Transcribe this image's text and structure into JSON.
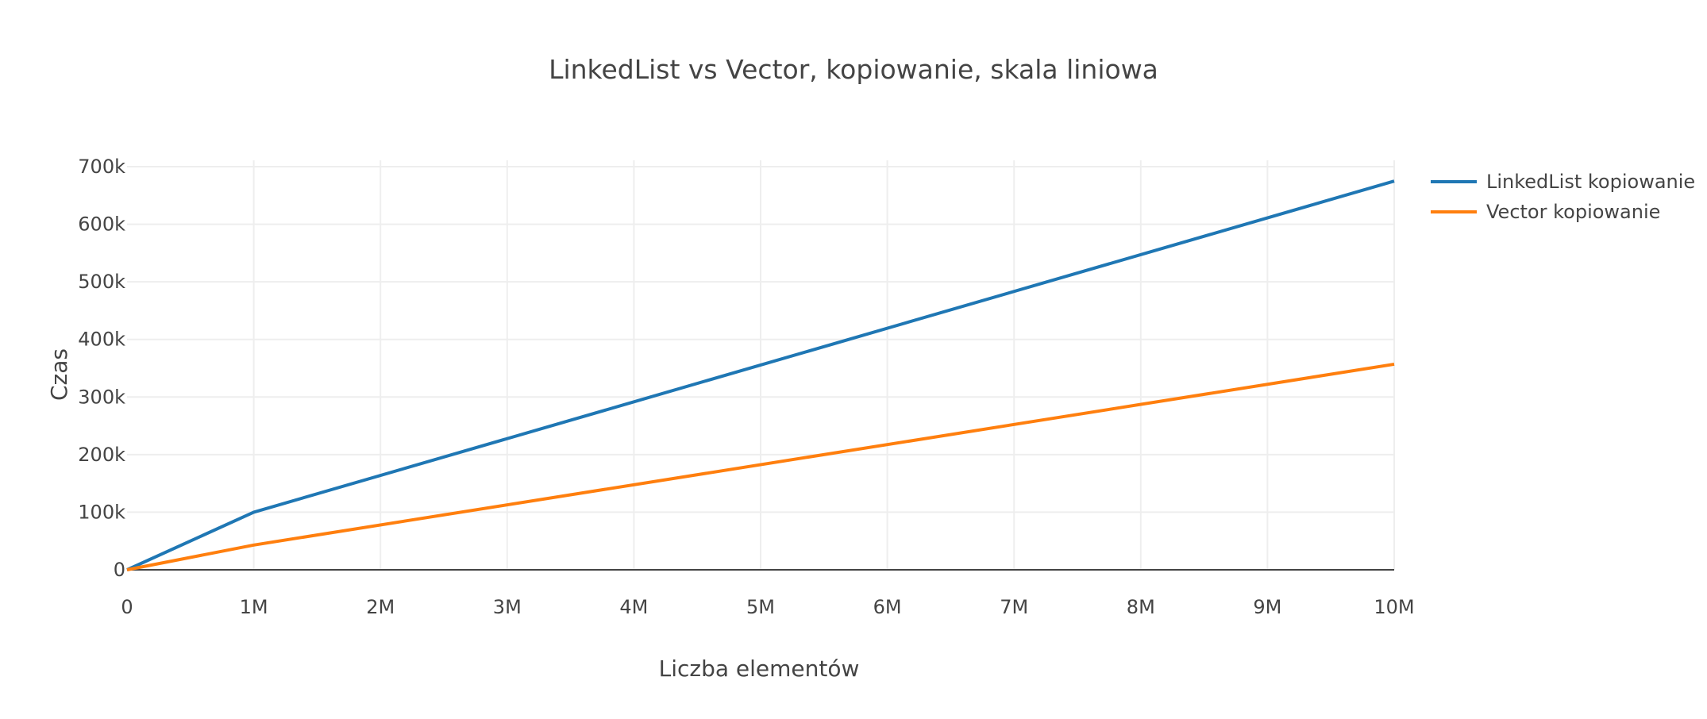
{
  "chart_data": {
    "type": "line",
    "title": "LinkedList vs Vector, kopiowanie, skala liniowa",
    "xlabel": "Liczba elementów",
    "ylabel": "Czas",
    "xlim": [
      0,
      10000000
    ],
    "ylim": [
      0,
      700000
    ],
    "grid": true,
    "legend_position": "top-right",
    "x_ticks": [
      0,
      1000000,
      2000000,
      3000000,
      4000000,
      5000000,
      6000000,
      7000000,
      8000000,
      9000000,
      10000000
    ],
    "x_tick_labels": [
      "0",
      "1M",
      "2M",
      "3M",
      "4M",
      "5M",
      "6M",
      "7M",
      "8M",
      "9M",
      "10M"
    ],
    "y_ticks": [
      0,
      100000,
      200000,
      300000,
      400000,
      500000,
      600000,
      700000
    ],
    "y_tick_labels": [
      "0",
      "100k",
      "200k",
      "300k",
      "400k",
      "500k",
      "600k",
      "700k"
    ],
    "x": [
      0,
      1000000,
      10000000
    ],
    "series": [
      {
        "name": "LinkedList kopiowanie",
        "color": "#1f77b4",
        "values": [
          0,
          100000,
          675000
        ]
      },
      {
        "name": "Vector kopiowanie",
        "color": "#ff7f0e",
        "values": [
          0,
          43000,
          357000
        ]
      }
    ]
  }
}
